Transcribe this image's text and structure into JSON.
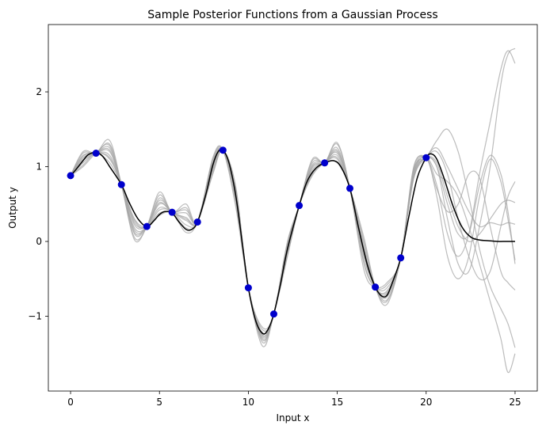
{
  "chart_data": {
    "type": "line",
    "title": "Sample Posterior Functions from a Gaussian Process",
    "xlabel": "Input x",
    "ylabel": "Output y",
    "xlim": [
      -1.25,
      26.25
    ],
    "ylim": [
      -2.0,
      2.9
    ],
    "xticks": [
      0,
      5,
      10,
      15,
      20,
      25
    ],
    "yticks": [
      -1,
      0,
      1,
      2
    ],
    "xtick_labels": [
      "0",
      "5",
      "10",
      "15",
      "20",
      "25"
    ],
    "ytick_labels": [
      "−1",
      "0",
      "1",
      "2"
    ],
    "grid": false,
    "colors": {
      "mean": "#000000",
      "sample": "#a6a6a6",
      "observation": "#0000cc"
    },
    "observations": {
      "x": [
        0.0,
        1.43,
        2.86,
        4.29,
        5.71,
        7.14,
        8.57,
        10.0,
        11.43,
        12.86,
        14.29,
        15.71,
        17.14,
        18.57,
        20.0
      ],
      "y": [
        0.88,
        1.18,
        0.76,
        0.2,
        0.39,
        0.26,
        1.22,
        -0.62,
        -0.97,
        0.48,
        1.05,
        0.71,
        -0.61,
        -0.22,
        1.12
      ]
    },
    "mean": {
      "x": [
        0,
        0.3,
        0.7,
        1.0,
        1.43,
        1.8,
        2.2,
        2.86,
        3.3,
        3.8,
        4.29,
        4.7,
        5.0,
        5.3,
        5.71,
        6.1,
        6.5,
        6.8,
        7.14,
        7.6,
        8.0,
        8.3,
        8.57,
        8.9,
        9.3,
        9.7,
        10.0,
        10.4,
        10.8,
        11.1,
        11.43,
        11.8,
        12.2,
        12.86,
        13.3,
        13.8,
        14.29,
        14.8,
        15.2,
        15.71,
        16.2,
        16.7,
        17.14,
        17.5,
        17.8,
        18.1,
        18.57,
        19.0,
        19.5,
        20.0,
        20.3,
        20.6,
        21.0,
        21.5,
        22.0,
        22.5,
        23.0,
        23.5,
        24.0,
        24.5,
        25.0
      ],
      "y": [
        0.88,
        0.96,
        1.08,
        1.16,
        1.19,
        1.14,
        1.0,
        0.76,
        0.52,
        0.3,
        0.2,
        0.28,
        0.36,
        0.4,
        0.38,
        0.26,
        0.16,
        0.16,
        0.26,
        0.62,
        1.02,
        1.2,
        1.22,
        1.06,
        0.6,
        -0.1,
        -0.62,
        -1.05,
        -1.23,
        -1.18,
        -0.97,
        -0.58,
        -0.1,
        0.48,
        0.8,
        0.98,
        1.05,
        1.08,
        1.0,
        0.71,
        0.18,
        -0.32,
        -0.61,
        -0.73,
        -0.72,
        -0.55,
        -0.22,
        0.3,
        0.85,
        1.12,
        1.17,
        1.1,
        0.85,
        0.48,
        0.2,
        0.06,
        0.02,
        0.01,
        0.0,
        0.0,
        0.0
      ]
    },
    "samples": [
      {
        "x": [
          0,
          0.7,
          1.43,
          2.2,
          2.86,
          3.6,
          4.29,
          5.0,
          5.71,
          6.5,
          7.14,
          8.0,
          8.57,
          9.3,
          10.0,
          10.8,
          11.43,
          12.2,
          12.86,
          13.6,
          14.29,
          15.0,
          15.71,
          16.5,
          17.14,
          17.8,
          18.57,
          19.3,
          20.0,
          20.6,
          21.2,
          21.8,
          22.4,
          23.0,
          23.6,
          24.2,
          24.6,
          25.0
        ],
        "y": [
          0.88,
          1.1,
          1.18,
          1.05,
          0.76,
          0.3,
          0.2,
          0.42,
          0.39,
          0.12,
          0.26,
          0.98,
          1.22,
          0.58,
          -0.62,
          -1.25,
          -0.97,
          -0.08,
          0.48,
          0.95,
          1.05,
          1.05,
          0.71,
          -0.1,
          -0.61,
          -0.74,
          -0.22,
          0.85,
          1.12,
          1.0,
          0.5,
          0.1,
          0.1,
          0.75,
          1.15,
          0.9,
          0.4,
          -0.3
        ]
      },
      {
        "x": [
          0,
          0.7,
          1.43,
          2.2,
          2.86,
          3.6,
          4.29,
          5.0,
          5.71,
          6.5,
          7.14,
          8.0,
          8.57,
          9.3,
          10.0,
          10.8,
          11.43,
          12.2,
          12.86,
          13.6,
          14.29,
          15.0,
          15.71,
          16.5,
          17.14,
          17.8,
          18.57,
          19.3,
          20.0,
          20.6,
          21.2,
          21.8,
          22.4,
          23.0,
          23.6,
          24.2,
          24.6,
          25.0
        ],
        "y": [
          0.88,
          1.15,
          1.18,
          1.2,
          0.76,
          0.1,
          0.2,
          0.55,
          0.39,
          0.32,
          0.26,
          1.05,
          1.22,
          0.68,
          -0.62,
          -1.3,
          -0.97,
          0.0,
          0.48,
          1.05,
          1.05,
          1.2,
          0.71,
          -0.28,
          -0.61,
          -0.62,
          -0.22,
          0.95,
          1.12,
          1.35,
          1.5,
          1.2,
          0.6,
          -0.1,
          -0.6,
          -0.9,
          -1.1,
          -1.42
        ]
      },
      {
        "x": [
          0,
          0.7,
          1.43,
          2.2,
          2.86,
          3.6,
          4.29,
          5.0,
          5.71,
          6.5,
          7.14,
          8.0,
          8.57,
          9.3,
          10.0,
          10.8,
          11.43,
          12.2,
          12.86,
          13.6,
          14.29,
          15.0,
          15.71,
          16.5,
          17.14,
          17.8,
          18.57,
          19.3,
          20.0,
          20.6,
          21.2,
          21.8,
          22.4,
          23.0,
          23.6,
          24.2,
          24.6,
          25.0
        ],
        "y": [
          0.88,
          1.2,
          1.18,
          1.3,
          0.76,
          0.02,
          0.2,
          0.62,
          0.39,
          0.45,
          0.26,
          1.1,
          1.22,
          0.5,
          -0.62,
          -1.35,
          -0.97,
          -0.15,
          0.48,
          1.1,
          1.05,
          1.3,
          0.71,
          -0.38,
          -0.61,
          -0.55,
          -0.22,
          1.0,
          1.12,
          1.0,
          0.3,
          -0.3,
          -0.4,
          0.2,
          1.0,
          2.1,
          2.5,
          2.58
        ]
      },
      {
        "x": [
          0,
          0.7,
          1.43,
          2.2,
          2.86,
          3.6,
          4.29,
          5.0,
          5.71,
          6.5,
          7.14,
          8.0,
          8.57,
          9.3,
          10.0,
          10.8,
          11.43,
          12.2,
          12.86,
          13.6,
          14.29,
          15.0,
          15.71,
          16.5,
          17.14,
          17.8,
          18.57,
          19.3,
          20.0,
          20.6,
          21.2,
          21.8,
          22.4,
          23.0,
          23.6,
          24.2,
          24.6,
          25.0
        ],
        "y": [
          0.88,
          1.05,
          1.18,
          1.12,
          0.76,
          0.22,
          0.2,
          0.35,
          0.39,
          0.22,
          0.26,
          0.92,
          1.22,
          0.7,
          -0.62,
          -1.18,
          -0.97,
          -0.05,
          0.48,
          0.9,
          1.05,
          1.12,
          0.71,
          0.0,
          -0.61,
          -0.8,
          -0.22,
          0.88,
          1.12,
          0.6,
          -0.2,
          -0.5,
          -0.2,
          0.6,
          1.1,
          0.8,
          0.3,
          -0.25
        ]
      },
      {
        "x": [
          0,
          0.7,
          1.43,
          2.2,
          2.86,
          3.6,
          4.29,
          5.0,
          5.71,
          6.5,
          7.14,
          8.0,
          8.57,
          9.3,
          10.0,
          10.8,
          11.43,
          12.2,
          12.86,
          13.6,
          14.29,
          15.0,
          15.71,
          16.5,
          17.14,
          17.8,
          18.57,
          19.3,
          20.0,
          20.6,
          21.2,
          21.8,
          22.4,
          23.0,
          23.6,
          24.2,
          24.6,
          25.0
        ],
        "y": [
          0.88,
          1.0,
          1.18,
          1.28,
          0.76,
          0.18,
          0.2,
          0.5,
          0.39,
          0.18,
          0.26,
          1.08,
          1.22,
          0.62,
          -0.62,
          -1.4,
          -0.97,
          -0.12,
          0.48,
          1.0,
          1.05,
          1.25,
          0.71,
          -0.18,
          -0.61,
          -0.68,
          -0.22,
          0.92,
          1.12,
          0.9,
          0.8,
          0.6,
          0.2,
          -0.3,
          -0.8,
          -1.3,
          -1.75,
          -1.5
        ]
      },
      {
        "x": [
          0,
          0.7,
          1.43,
          2.2,
          2.86,
          3.6,
          4.29,
          5.0,
          5.71,
          6.5,
          7.14,
          8.0,
          8.57,
          9.3,
          10.0,
          10.8,
          11.43,
          12.2,
          12.86,
          13.6,
          14.29,
          15.0,
          15.71,
          16.5,
          17.14,
          17.8,
          18.57,
          19.3,
          20.0,
          20.6,
          21.2,
          21.8,
          22.4,
          23.0,
          23.6,
          24.2,
          24.6,
          25.0
        ],
        "y": [
          0.88,
          1.12,
          1.18,
          1.22,
          0.76,
          0.28,
          0.2,
          0.58,
          0.39,
          0.38,
          0.26,
          1.0,
          1.22,
          0.55,
          -0.62,
          -1.22,
          -0.97,
          -0.02,
          0.48,
          1.02,
          1.05,
          1.15,
          0.71,
          -0.22,
          -0.61,
          -0.78,
          -0.22,
          0.9,
          1.12,
          1.2,
          0.9,
          0.3,
          -0.2,
          -0.5,
          -0.4,
          0.2,
          0.6,
          0.8
        ]
      },
      {
        "x": [
          0,
          0.7,
          1.43,
          2.2,
          2.86,
          3.6,
          4.29,
          5.0,
          5.71,
          6.5,
          7.14,
          8.0,
          8.57,
          9.3,
          10.0,
          10.8,
          11.43,
          12.2,
          12.86,
          13.6,
          14.29,
          15.0,
          15.71,
          16.5,
          17.14,
          17.8,
          18.57,
          19.3,
          20.0,
          20.6,
          21.2,
          21.8,
          22.4,
          23.0,
          23.6,
          24.2,
          24.6,
          25.0
        ],
        "y": [
          0.88,
          1.08,
          1.18,
          1.15,
          0.76,
          0.12,
          0.2,
          0.45,
          0.39,
          0.28,
          0.26,
          0.95,
          1.22,
          0.65,
          -0.62,
          -1.28,
          -0.97,
          -0.1,
          0.48,
          0.92,
          1.05,
          1.18,
          0.71,
          -0.05,
          -0.61,
          -0.7,
          -0.22,
          0.86,
          1.12,
          1.05,
          0.6,
          0.2,
          0.0,
          0.1,
          0.3,
          0.5,
          0.55,
          0.52
        ]
      },
      {
        "x": [
          0,
          0.7,
          1.43,
          2.2,
          2.86,
          3.6,
          4.29,
          5.0,
          5.71,
          6.5,
          7.14,
          8.0,
          8.57,
          9.3,
          10.0,
          10.8,
          11.43,
          12.2,
          12.86,
          13.6,
          14.29,
          15.0,
          15.71,
          16.5,
          17.14,
          17.8,
          18.57,
          19.3,
          20.0,
          20.6,
          21.2,
          21.8,
          22.4,
          23.0,
          23.6,
          24.2,
          24.6,
          25.0
        ],
        "y": [
          0.88,
          1.18,
          1.18,
          1.35,
          0.76,
          0.05,
          0.2,
          0.66,
          0.39,
          0.5,
          0.26,
          1.12,
          1.22,
          0.45,
          -0.62,
          -1.32,
          -0.97,
          -0.18,
          0.48,
          1.08,
          1.05,
          1.32,
          0.71,
          -0.3,
          -0.61,
          -0.58,
          -0.22,
          0.98,
          1.12,
          0.75,
          0.1,
          -0.2,
          0.1,
          0.9,
          1.6,
          2.3,
          2.55,
          2.38
        ]
      },
      {
        "x": [
          0,
          0.7,
          1.43,
          2.2,
          2.86,
          3.6,
          4.29,
          5.0,
          5.71,
          6.5,
          7.14,
          8.0,
          8.57,
          9.3,
          10.0,
          10.8,
          11.43,
          12.2,
          12.86,
          13.6,
          14.29,
          15.0,
          15.71,
          16.5,
          17.14,
          17.8,
          18.57,
          19.3,
          20.0,
          20.6,
          21.2,
          21.8,
          22.4,
          23.0,
          23.6,
          24.2,
          24.6,
          25.0
        ],
        "y": [
          0.88,
          1.02,
          1.18,
          1.1,
          0.76,
          0.25,
          0.2,
          0.38,
          0.39,
          0.3,
          0.26,
          0.9,
          1.22,
          0.72,
          -0.62,
          -1.15,
          -0.97,
          -0.06,
          0.48,
          0.88,
          1.05,
          1.1,
          0.71,
          0.05,
          -0.61,
          -0.84,
          -0.22,
          0.84,
          1.12,
          1.25,
          1.0,
          0.7,
          0.4,
          0.2,
          0.25,
          0.22,
          0.25,
          0.23
        ]
      },
      {
        "x": [
          0,
          0.7,
          1.43,
          2.2,
          2.86,
          3.6,
          4.29,
          5.0,
          5.71,
          6.5,
          7.14,
          8.0,
          8.57,
          9.3,
          10.0,
          10.8,
          11.43,
          12.2,
          12.86,
          13.6,
          14.29,
          15.0,
          15.71,
          16.5,
          17.14,
          17.8,
          18.57,
          19.3,
          20.0,
          20.6,
          21.2,
          21.8,
          22.4,
          23.0,
          23.6,
          24.2,
          24.6,
          25.0
        ],
        "y": [
          0.88,
          1.14,
          1.18,
          1.25,
          0.76,
          0.15,
          0.2,
          0.52,
          0.39,
          0.42,
          0.26,
          1.04,
          1.22,
          0.6,
          -0.62,
          -1.26,
          -0.97,
          -0.2,
          0.48,
          0.98,
          1.05,
          1.22,
          0.71,
          -0.12,
          -0.61,
          -0.66,
          -0.22,
          0.94,
          1.12,
          0.7,
          0.4,
          0.5,
          0.9,
          0.85,
          0.2,
          -0.4,
          -0.55,
          -0.65
        ]
      }
    ]
  }
}
